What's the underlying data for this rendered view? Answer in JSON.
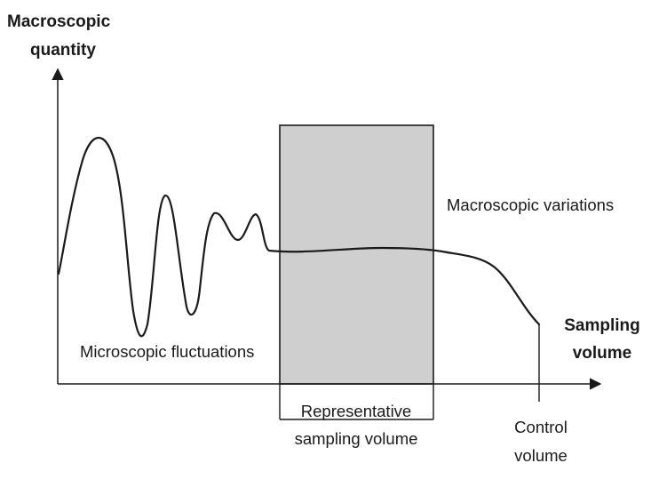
{
  "y_axis": {
    "label_line1": "Macroscopic",
    "label_line2": "quantity"
  },
  "x_axis": {
    "label_line1": "Sampling",
    "label_line2": "volume"
  },
  "regions": {
    "micro": "Microscopic fluctuations",
    "macro": "Macroscopic variations"
  },
  "markers": {
    "rsv_line1": "Representative",
    "rsv_line2": "sampling volume",
    "cv_line1": "Control",
    "cv_line2": "volume"
  },
  "colors": {
    "box_fill": "#cfcfcf",
    "stroke": "#1a1a1a",
    "text": "#1a1a1a"
  }
}
